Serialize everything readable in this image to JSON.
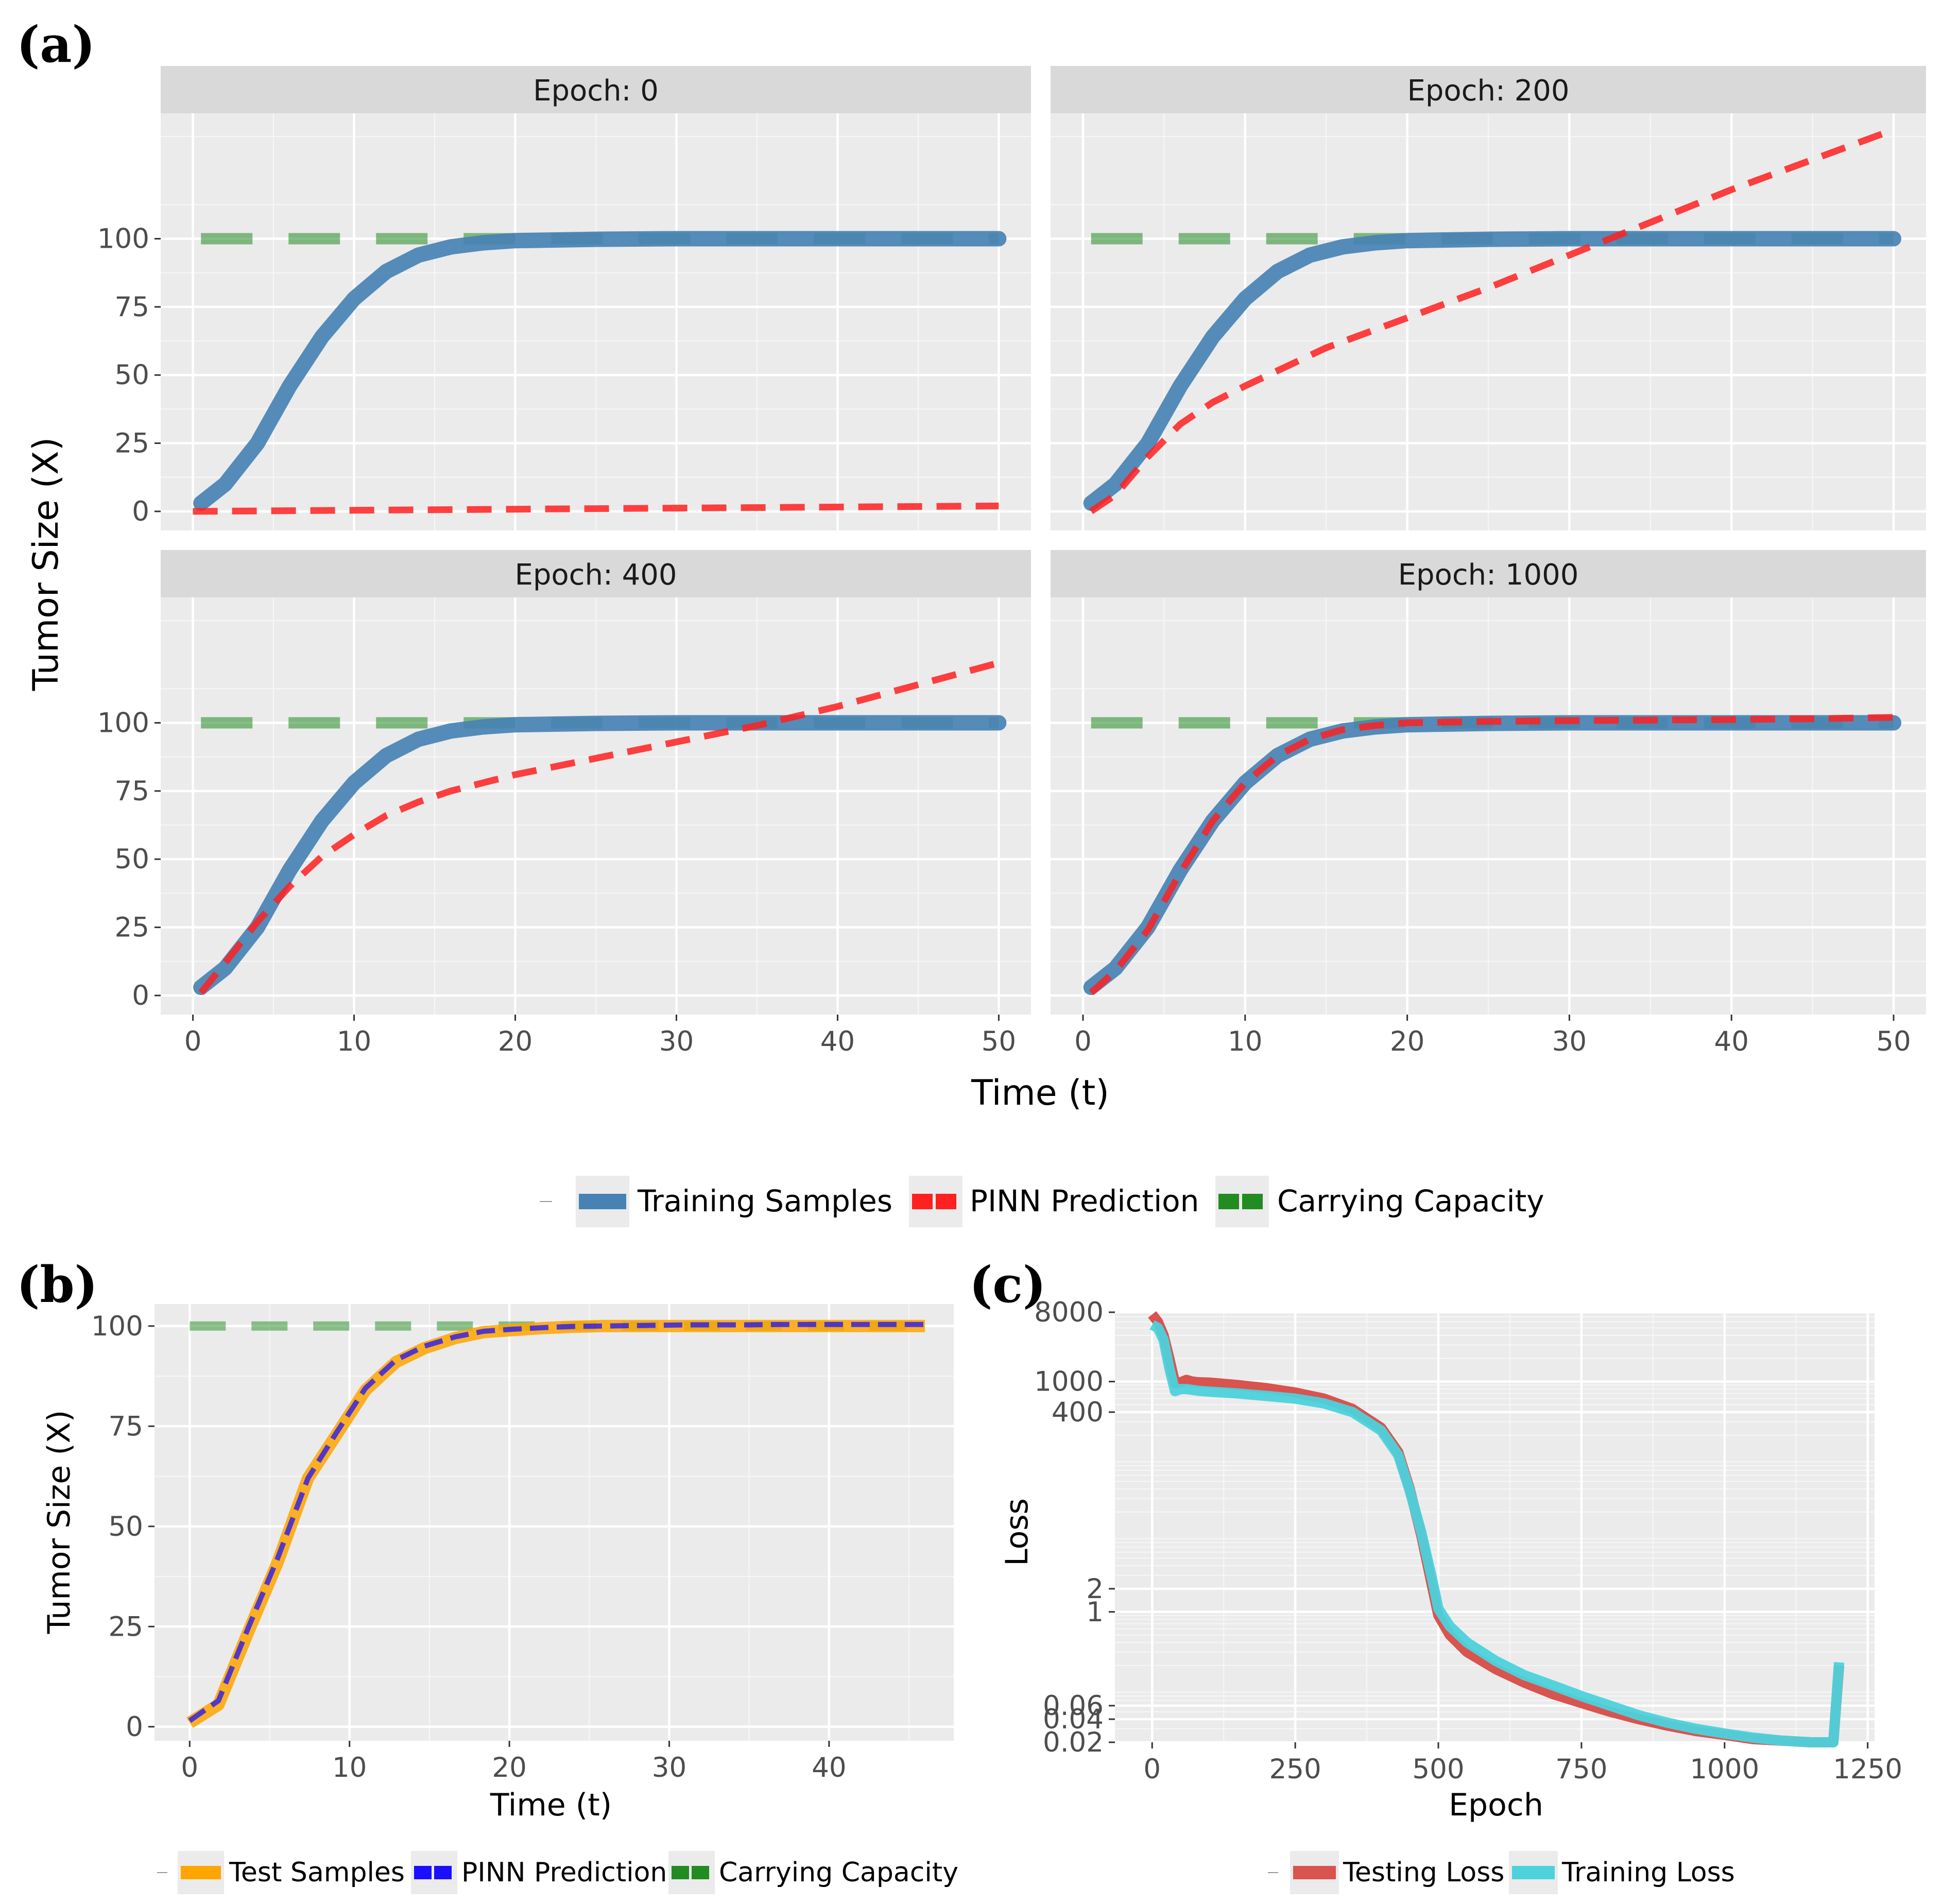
{
  "figure": {
    "panel_labels": [
      "(a)",
      "(b)",
      "(c)"
    ],
    "colors": {
      "training": "#4682b4",
      "pinn_a": "#ff2020",
      "capacity": "#228b22",
      "test": "#ffa500",
      "pinn_b": "#1a10ff",
      "testing_loss": "#d9534f",
      "training_loss": "#4dd2db",
      "panel_bg": "#ebebeb",
      "strip_bg": "#d9d9d9"
    }
  },
  "legend_a": {
    "items": [
      {
        "label": "Training Samples",
        "series": "training"
      },
      {
        "label": "PINN Prediction",
        "series": "pinn"
      },
      {
        "label": "Carrying Capacity",
        "series": "capacity"
      }
    ]
  },
  "legend_b": {
    "items": [
      {
        "label": "Test Samples",
        "series": "test"
      },
      {
        "label": "PINN Prediction",
        "series": "pinn"
      },
      {
        "label": "Carrying Capacity",
        "series": "capacity"
      }
    ]
  },
  "legend_c": {
    "items": [
      {
        "label": "Testing Loss",
        "series": "testing"
      },
      {
        "label": "Training Loss",
        "series": "training"
      }
    ]
  },
  "chart_data": [
    {
      "id": "a",
      "type": "line",
      "xlabel": "Time (t)",
      "ylabel": "Tumor Size (X)",
      "xlim": [
        -2,
        52
      ],
      "ylim": [
        -7,
        146
      ],
      "xticks": [
        0,
        10,
        20,
        30,
        40,
        50
      ],
      "yticks": [
        0,
        25,
        50,
        75,
        100
      ],
      "facets": [
        {
          "title": "Epoch: 0",
          "training": {
            "t": [
              0.5,
              2,
              4,
              6,
              8,
              10,
              12,
              14,
              16,
              18,
              20,
              25,
              30,
              35,
              40,
              45,
              50
            ],
            "x": [
              3,
              10,
              25,
              46,
              64,
              78,
              88,
              94,
              97,
              98.5,
              99.3,
              99.8,
              100,
              100,
              100,
              100,
              100
            ]
          },
          "pinn": {
            "t": [
              0,
              10,
              20,
              30,
              40,
              50
            ],
            "x": [
              0,
              0.4,
              0.8,
              1.2,
              1.6,
              2
            ]
          },
          "capacity": 100
        },
        {
          "title": "Epoch: 200",
          "training": {
            "t": [
              0.5,
              2,
              4,
              6,
              8,
              10,
              12,
              14,
              16,
              18,
              20,
              25,
              30,
              35,
              40,
              45,
              50
            ],
            "x": [
              3,
              10,
              25,
              46,
              64,
              78,
              88,
              94,
              97,
              98.5,
              99.3,
              99.8,
              100,
              100,
              100,
              100,
              100
            ]
          },
          "pinn": {
            "t": [
              0.5,
              2,
              4,
              6,
              8,
              10,
              15,
              20,
              25,
              30,
              35,
              40,
              45,
              50
            ],
            "x": [
              0,
              6,
              20,
              32,
              40,
              46,
              60,
              71,
              82,
              94,
              106,
              118,
              129,
              140
            ]
          },
          "capacity": 100
        },
        {
          "title": "Epoch: 400",
          "training": {
            "t": [
              0.5,
              2,
              4,
              6,
              8,
              10,
              12,
              14,
              16,
              18,
              20,
              25,
              30,
              35,
              40,
              45,
              50
            ],
            "x": [
              3,
              10,
              25,
              46,
              64,
              78,
              88,
              94,
              97,
              98.5,
              99.3,
              99.8,
              100,
              100,
              100,
              100,
              100
            ]
          },
          "pinn": {
            "t": [
              0.5,
              2,
              4,
              6,
              8,
              10,
              12,
              14,
              16,
              18,
              20,
              25,
              30,
              35,
              40,
              45,
              50
            ],
            "x": [
              1,
              12,
              27,
              40,
              51,
              59,
              66,
              71,
              75,
              78,
              81,
              87,
              93,
              99,
              106,
              114,
              122
            ]
          },
          "capacity": 100
        },
        {
          "title": "Epoch: 1000",
          "training": {
            "t": [
              0.5,
              2,
              4,
              6,
              8,
              10,
              12,
              14,
              16,
              18,
              20,
              25,
              30,
              35,
              40,
              45,
              50
            ],
            "x": [
              3,
              10,
              25,
              46,
              64,
              78,
              88,
              94,
              97,
              98.5,
              99.3,
              99.8,
              100,
              100,
              100,
              100,
              100
            ]
          },
          "pinn": {
            "t": [
              0.5,
              2,
              4,
              6,
              8,
              10,
              12,
              14,
              16,
              18,
              20,
              25,
              30,
              35,
              40,
              45,
              50
            ],
            "x": [
              1,
              9,
              24,
              45,
              64,
              78,
              88,
              94,
              97.5,
              99,
              100,
              100.5,
              100.8,
              101,
              101.2,
              101.5,
              102
            ]
          },
          "capacity": 100
        }
      ]
    },
    {
      "id": "b",
      "type": "line",
      "xlabel": "Time (t)",
      "ylabel": "Tumor Size (X)",
      "xlim": [
        -2.2,
        47.8
      ],
      "ylim": [
        -3.5,
        105.5
      ],
      "xticks": [
        0,
        10,
        20,
        30,
        40
      ],
      "yticks": [
        0,
        25,
        50,
        75,
        100
      ],
      "test": {
        "t": [
          0,
          1.8,
          3.7,
          5.5,
          7.4,
          9.2,
          11,
          12.9,
          14.7,
          16.6,
          18.4,
          20.2,
          22.1,
          23.9,
          25.8,
          27.6,
          29.5,
          31.3,
          33.1,
          35,
          36.8,
          38.7,
          40.5,
          42.3,
          44.2,
          46
        ],
        "x": [
          1,
          5.5,
          24,
          41,
          62,
          73,
          84,
          91,
          94.5,
          97,
          98.5,
          99,
          99.5,
          99.8,
          100,
          100,
          100,
          100,
          100,
          100,
          100,
          100,
          100,
          100,
          100,
          100
        ]
      },
      "pinn": {
        "t": [
          0,
          1.8,
          3.7,
          5.5,
          7.4,
          9.2,
          11,
          12.9,
          14.7,
          16.6,
          18.4,
          20.2,
          22.1,
          23.9,
          25.8,
          27.6,
          29.5,
          31.3,
          33.1,
          35,
          36.8,
          38.7,
          40.5,
          42.3,
          44.2,
          46
        ],
        "x": [
          1.5,
          6.5,
          25,
          42,
          62,
          73.5,
          84.5,
          91.5,
          95,
          97.3,
          98.7,
          99.2,
          99.6,
          99.9,
          100,
          100.1,
          100.2,
          100.3,
          100.3,
          100.3,
          100.4,
          100.4,
          100.4,
          100.4,
          100.4,
          100.4
        ]
      },
      "capacity": 100
    },
    {
      "id": "c",
      "type": "line",
      "xlabel": "Epoch",
      "ylabel": "Loss",
      "yscale": "log",
      "xlim": [
        -65,
        1262
      ],
      "ylim": [
        0.02,
        8000
      ],
      "xticks": [
        0,
        250,
        500,
        750,
        1000,
        1250
      ],
      "yticks": [
        8000,
        1000,
        400,
        2,
        1,
        0.06,
        0.04,
        0.02
      ],
      "testing_loss": {
        "epoch": [
          0,
          10,
          20,
          30,
          40,
          50,
          60,
          70,
          80,
          100,
          150,
          200,
          250,
          300,
          350,
          400,
          430,
          450,
          470,
          490,
          500,
          520,
          550,
          600,
          650,
          700,
          750,
          800,
          850,
          900,
          950,
          1000,
          1050,
          1100,
          1150,
          1190,
          1200
        ],
        "loss": [
          7500,
          6000,
          4000,
          2000,
          950,
          980,
          1050,
          1000,
          980,
          970,
          900,
          820,
          720,
          600,
          440,
          250,
          120,
          40,
          10,
          2,
          0.9,
          0.5,
          0.3,
          0.18,
          0.12,
          0.085,
          0.065,
          0.05,
          0.04,
          0.033,
          0.028,
          0.025,
          0.022,
          0.021,
          0.02,
          0.02,
          0.2
        ]
      },
      "training_loss": {
        "epoch": [
          0,
          10,
          20,
          30,
          40,
          50,
          60,
          70,
          80,
          100,
          150,
          200,
          250,
          300,
          350,
          400,
          430,
          450,
          470,
          490,
          500,
          520,
          550,
          600,
          650,
          700,
          750,
          800,
          850,
          900,
          950,
          1000,
          1050,
          1100,
          1150,
          1190,
          1200
        ],
        "loss": [
          5500,
          5000,
          3500,
          1500,
          750,
          800,
          800,
          780,
          760,
          740,
          700,
          650,
          600,
          520,
          400,
          230,
          110,
          38,
          11,
          2.5,
          1.1,
          0.65,
          0.4,
          0.23,
          0.15,
          0.11,
          0.08,
          0.06,
          0.045,
          0.036,
          0.03,
          0.026,
          0.023,
          0.021,
          0.02,
          0.02,
          0.22
        ]
      }
    }
  ]
}
